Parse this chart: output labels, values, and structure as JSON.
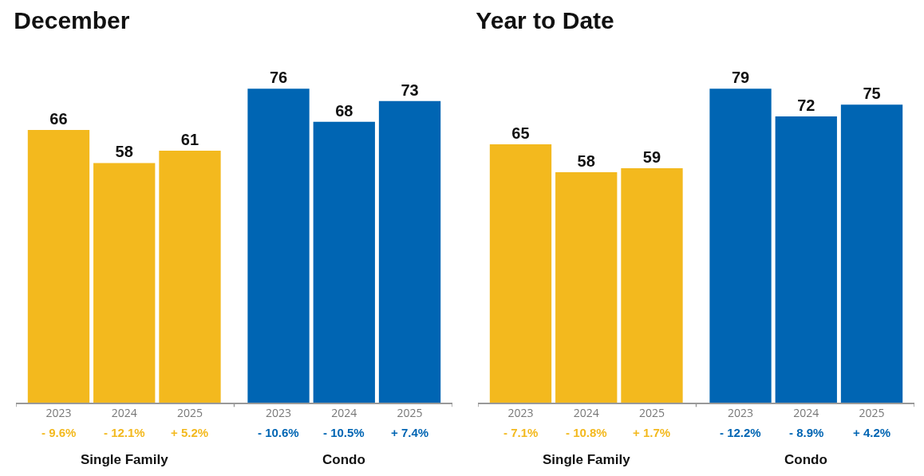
{
  "chart_data": [
    {
      "type": "bar",
      "title": "December",
      "categories": [
        "2023",
        "2024",
        "2025",
        "2023",
        "2024",
        "2025"
      ],
      "series": [
        {
          "color": "#f3b91e",
          "values": [
            66,
            58,
            61,
            null,
            null,
            null
          ]
        },
        {
          "color": "#0065b3",
          "values": [
            null,
            null,
            null,
            76,
            68,
            73
          ]
        }
      ],
      "data_labels": true,
      "grid": false,
      "legend": false,
      "annotations": [
        "- 9.6%",
        "- 12.1%",
        "+ 5.2%",
        "- 10.6%",
        "- 10.5%",
        "+ 7.4%",
        "Single Family",
        "Condo"
      ]
    },
    {
      "type": "bar",
      "title": "Year to Date",
      "categories": [
        "2023",
        "2024",
        "2025",
        "2023",
        "2024",
        "2025"
      ],
      "series": [
        {
          "color": "#f3b91e",
          "values": [
            65,
            58,
            59,
            null,
            null,
            null
          ]
        },
        {
          "color": "#0065b3",
          "values": [
            null,
            null,
            null,
            79,
            72,
            75
          ]
        }
      ],
      "data_labels": true,
      "grid": false,
      "legend": false,
      "annotations": [
        "- 7.1%",
        "- 10.8%",
        "+ 1.7%",
        "- 12.2%",
        "- 8.9%",
        "+ 4.2%",
        "Single Family",
        "Condo"
      ]
    }
  ]
}
